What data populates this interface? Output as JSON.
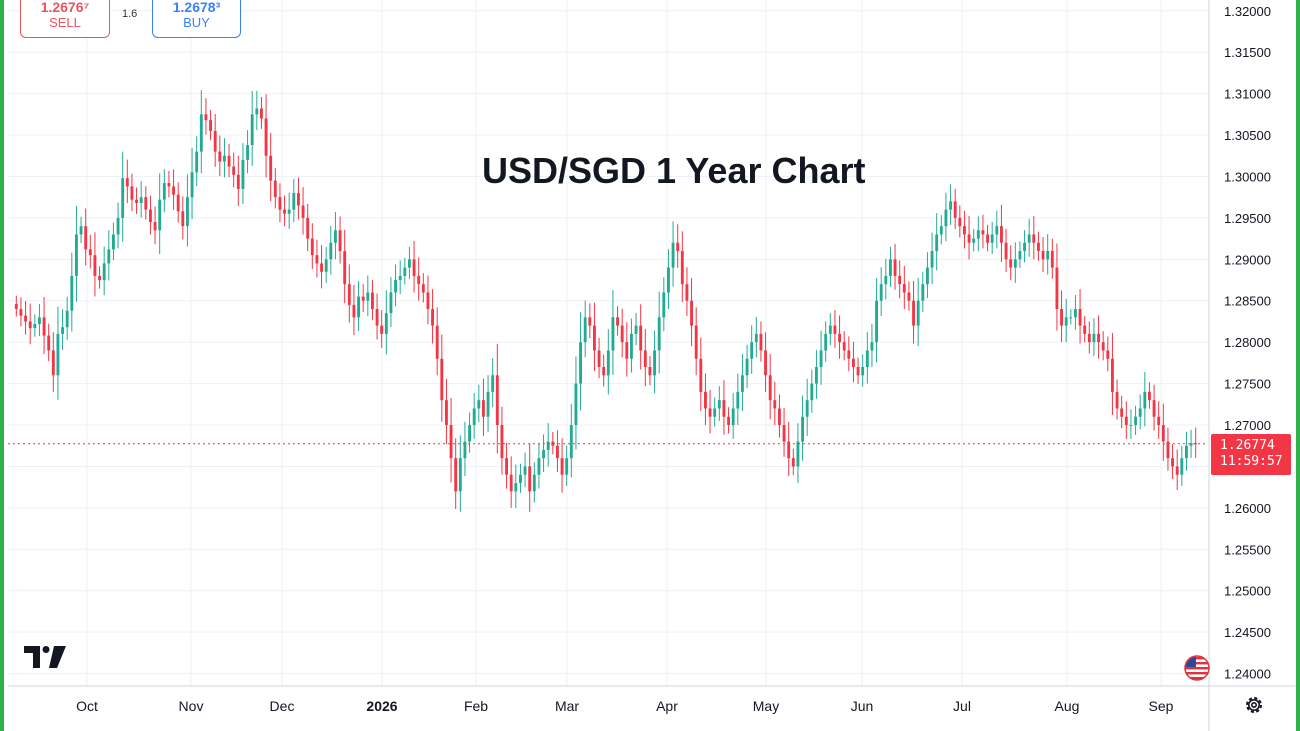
{
  "trade": {
    "sell_price": "1.2676⁷",
    "sell_label": "SELL",
    "spread": "1.6",
    "buy_price": "1.2678³",
    "buy_label": "BUY"
  },
  "price_tag": {
    "last_price": "1.26774",
    "countdown": "11:59:57"
  },
  "icons": [
    "tradingview-logo-icon",
    "us-flag-icon",
    "gear-icon"
  ],
  "colors": {
    "up": "#22ab94",
    "down": "#f23645",
    "frame": "#2db34a",
    "grid": "#eef1f6"
  },
  "chart_data": {
    "type": "candlestick",
    "title": "USD/SGD 1 Year Chart",
    "y_ticks": [
      "1.32000",
      "1.31500",
      "1.31000",
      "1.30500",
      "1.30000",
      "1.29500",
      "1.29000",
      "1.28500",
      "1.28000",
      "1.27500",
      "1.27000",
      "1.26500",
      "1.26000",
      "1.25500",
      "1.25000",
      "1.24500",
      "1.24000"
    ],
    "x_ticks": [
      "Oct",
      "Nov",
      "Dec",
      "2026",
      "Feb",
      "Mar",
      "Apr",
      "May",
      "Jun",
      "Jul",
      "Aug",
      "Sep"
    ],
    "ylim": [
      1.2385,
      1.3213
    ],
    "last_price": 1.26774,
    "closes": [
      1.284,
      1.2832,
      1.2825,
      1.2817,
      1.2822,
      1.283,
      1.2808,
      1.279,
      1.276,
      1.281,
      1.2818,
      1.2838,
      1.288,
      1.293,
      1.294,
      1.2912,
      1.2905,
      1.288,
      1.2875,
      1.2895,
      1.2912,
      1.293,
      1.295,
      1.2998,
      1.2988,
      1.2972,
      1.2968,
      1.2975,
      1.296,
      1.2945,
      1.2935,
      1.2972,
      1.2992,
      1.2988,
      1.2978,
      1.2958,
      1.294,
      1.2975,
      1.3005,
      1.303,
      1.3075,
      1.3068,
      1.3055,
      1.303,
      1.3018,
      1.3025,
      1.3012,
      1.3002,
      1.2985,
      1.302,
      1.3038,
      1.3075,
      1.3082,
      1.307,
      1.3025,
      1.2995,
      1.2975,
      1.296,
      1.2955,
      1.296,
      1.298,
      1.2965,
      1.295,
      1.2925,
      1.2905,
      1.2895,
      1.2885,
      1.29,
      1.292,
      1.2935,
      1.291,
      1.287,
      1.2845,
      1.283,
      1.2855,
      1.285,
      1.286,
      1.284,
      1.282,
      1.281,
      1.2835,
      1.286,
      1.2875,
      1.288,
      1.289,
      1.29,
      1.288,
      1.287,
      1.286,
      1.284,
      1.282,
      1.278,
      1.273,
      1.27,
      1.266,
      1.262,
      1.266,
      1.268,
      1.27,
      1.272,
      1.273,
      1.271,
      1.274,
      1.276,
      1.27,
      1.266,
      1.264,
      1.262,
      1.263,
      1.264,
      1.265,
      1.262,
      1.264,
      1.266,
      1.267,
      1.268,
      1.2675,
      1.266,
      1.264,
      1.266,
      1.27,
      1.275,
      1.28,
      1.283,
      1.282,
      1.279,
      1.277,
      1.276,
      1.279,
      1.283,
      1.282,
      1.28,
      1.278,
      1.281,
      1.282,
      1.279,
      1.277,
      1.276,
      1.279,
      1.283,
      1.286,
      1.289,
      1.292,
      1.291,
      1.287,
      1.285,
      1.282,
      1.278,
      1.274,
      1.272,
      1.271,
      1.272,
      1.273,
      1.271,
      1.27,
      1.272,
      1.274,
      1.276,
      1.278,
      1.28,
      1.281,
      1.279,
      1.276,
      1.273,
      1.272,
      1.27,
      1.268,
      1.266,
      1.265,
      1.268,
      1.271,
      1.273,
      1.275,
      1.277,
      1.279,
      1.281,
      1.282,
      1.281,
      1.28,
      1.279,
      1.278,
      1.277,
      1.276,
      1.277,
      1.279,
      1.28,
      1.285,
      1.287,
      1.288,
      1.29,
      1.288,
      1.287,
      1.286,
      1.285,
      1.282,
      1.285,
      1.287,
      1.289,
      1.291,
      1.293,
      1.294,
      1.296,
      1.297,
      1.295,
      1.294,
      1.293,
      1.292,
      1.2925,
      1.2935,
      1.293,
      1.292,
      1.293,
      1.294,
      1.292,
      1.29,
      1.289,
      1.29,
      1.291,
      1.292,
      1.293,
      1.292,
      1.291,
      1.29,
      1.291,
      1.289,
      1.284,
      1.282,
      1.283,
      1.283,
      1.284,
      1.282,
      1.281,
      1.28,
      1.281,
      1.28,
      1.279,
      1.278,
      1.274,
      1.272,
      1.271,
      1.27,
      1.27,
      1.271,
      1.272,
      1.274,
      1.273,
      1.271,
      1.27,
      1.268,
      1.266,
      1.265,
      1.264,
      1.266,
      1.2675,
      1.2678,
      1.26774
    ]
  }
}
